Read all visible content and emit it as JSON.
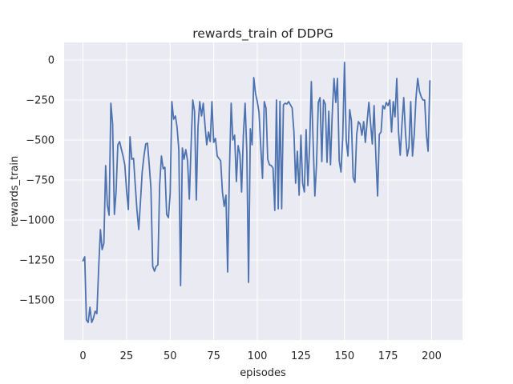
{
  "figure": {
    "background": "#ffffff",
    "plot_background": "#eaeaf2",
    "grid_color": "#ffffff",
    "line_color": "#4c72b0",
    "text_color": "#262626"
  },
  "chart_data": {
    "type": "line",
    "title": "rewards_train of DDPG",
    "xlabel": "episodes",
    "ylabel": "rewards_train",
    "x_description": "episode index 0-199 (one point per episode)",
    "xlim": [
      -11,
      218
    ],
    "ylim": [
      -1750,
      110
    ],
    "x_ticks": [
      0,
      25,
      50,
      75,
      100,
      125,
      150,
      175,
      200
    ],
    "y_ticks": [
      0,
      -250,
      -500,
      -750,
      -1000,
      -1250,
      -1500
    ],
    "grid": true,
    "legend": "none",
    "series": [
      {
        "name": "rewards_train",
        "color": "#4c72b0",
        "values": [
          -1255,
          -1230,
          -1625,
          -1640,
          -1545,
          -1640,
          -1615,
          -1570,
          -1585,
          -1300,
          -1060,
          -1185,
          -1145,
          -660,
          -905,
          -970,
          -270,
          -400,
          -965,
          -825,
          -530,
          -510,
          -555,
          -600,
          -655,
          -815,
          -935,
          -480,
          -620,
          -615,
          -785,
          -940,
          -1060,
          -880,
          -700,
          -600,
          -525,
          -520,
          -650,
          -800,
          -1290,
          -1320,
          -1290,
          -1280,
          -780,
          -600,
          -680,
          -670,
          -965,
          -985,
          -835,
          -260,
          -370,
          -350,
          -420,
          -560,
          -1410,
          -550,
          -620,
          -560,
          -630,
          -870,
          -550,
          -250,
          -320,
          -875,
          -420,
          -260,
          -350,
          -270,
          -410,
          -530,
          -450,
          -510,
          -260,
          -515,
          -490,
          -600,
          -615,
          -630,
          -825,
          -915,
          -845,
          -1325,
          -700,
          -270,
          -500,
          -470,
          -760,
          -535,
          -590,
          -825,
          -470,
          -270,
          -570,
          -1390,
          -430,
          -530,
          -110,
          -210,
          -260,
          -330,
          -550,
          -740,
          -260,
          -300,
          -620,
          -655,
          -660,
          -675,
          -940,
          -250,
          -930,
          -258,
          -930,
          -280,
          -270,
          -275,
          -260,
          -280,
          -300,
          -450,
          -770,
          -570,
          -845,
          -470,
          -770,
          -825,
          -435,
          -785,
          -535,
          -135,
          -505,
          -850,
          -650,
          -265,
          -235,
          -635,
          -250,
          -275,
          -640,
          -320,
          -655,
          -335,
          -115,
          -265,
          -115,
          -630,
          -700,
          -480,
          -15,
          -500,
          -600,
          -310,
          -380,
          -735,
          -765,
          -465,
          -385,
          -400,
          -470,
          -385,
          -515,
          -385,
          -265,
          -400,
          -525,
          -285,
          -600,
          -850,
          -465,
          -450,
          -285,
          -305,
          -265,
          -285,
          -250,
          -450,
          -260,
          -355,
          -115,
          -450,
          -595,
          -400,
          -235,
          -460,
          -600,
          -545,
          -260,
          -600,
          -465,
          -242,
          -115,
          -195,
          -230,
          -250,
          -250,
          -470,
          -570,
          -130
        ]
      }
    ]
  }
}
